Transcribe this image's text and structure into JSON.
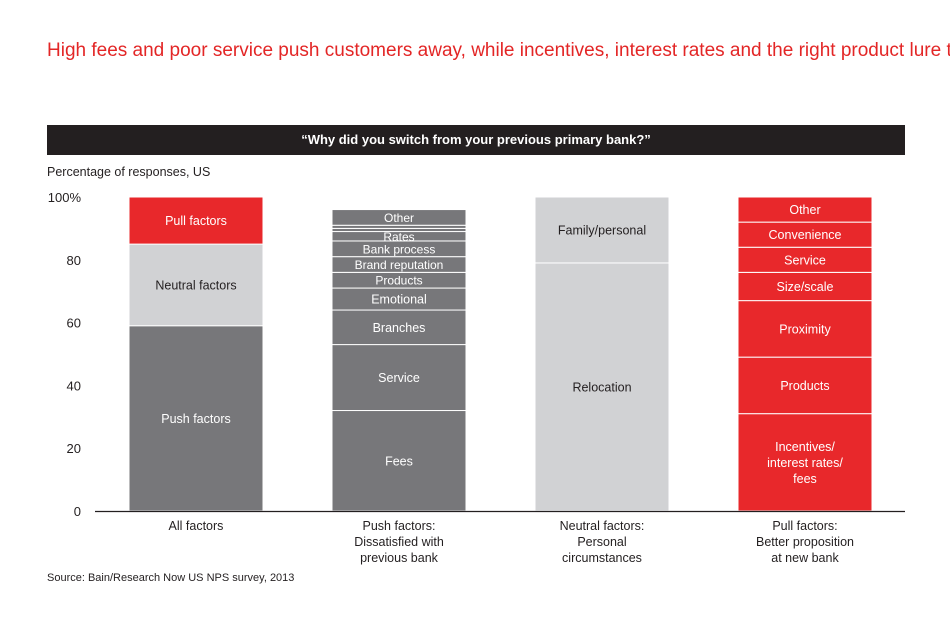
{
  "title": "High fees and poor service push customers away, while incentives, interest rates and the right product lure them",
  "banner": "“Why did you switch from your previous primary bank?”",
  "ylabel": "Percentage of responses, US",
  "source": "Source: Bain/Research Now US NPS survey, 2013",
  "colors": {
    "push": "#77777a",
    "neutral": "#d1d2d4",
    "pull": "#e8282b",
    "axis": "#231f20"
  },
  "chart_data": {
    "type": "bar",
    "stacked": true,
    "ylim": [
      0,
      100
    ],
    "yticks": [
      0,
      20,
      40,
      60,
      80,
      100
    ],
    "ytick_labels": [
      "0",
      "20",
      "40",
      "60",
      "80",
      "100%"
    ],
    "categories": [
      [
        "All factors"
      ],
      [
        "Push factors:",
        "Dissatisfied with",
        "previous bank"
      ],
      [
        "Neutral factors:",
        "Personal",
        "circumstances"
      ],
      [
        "Pull factors:",
        "Better proposition",
        "at new bank"
      ]
    ],
    "bars": [
      {
        "segments": [
          {
            "label": [
              "Push factors"
            ],
            "value": 59,
            "color": "push"
          },
          {
            "label": [
              "Neutral factors"
            ],
            "value": 26,
            "color": "neutral"
          },
          {
            "label": [
              "Pull factors"
            ],
            "value": 15,
            "color": "pull"
          }
        ]
      },
      {
        "segments": [
          {
            "label": [
              "Fees"
            ],
            "value": 32,
            "color": "push"
          },
          {
            "label": [
              "Service"
            ],
            "value": 21,
            "color": "push"
          },
          {
            "label": [
              "Branches"
            ],
            "value": 11,
            "color": "push"
          },
          {
            "label": [
              "Emotional"
            ],
            "value": 7,
            "color": "push"
          },
          {
            "label": [
              "Products"
            ],
            "value": 5,
            "color": "push"
          },
          {
            "label": [
              "Brand reputation"
            ],
            "value": 5,
            "color": "push"
          },
          {
            "label": [
              "Bank process"
            ],
            "value": 5,
            "color": "push"
          },
          {
            "label": [
              "Rates"
            ],
            "value": 3,
            "color": "push"
          },
          {
            "label": [],
            "value": 1,
            "color": "push"
          },
          {
            "label": [],
            "value": 1,
            "color": "push"
          },
          {
            "label": [
              "Other"
            ],
            "value": 5,
            "color": "push"
          }
        ]
      },
      {
        "segments": [
          {
            "label": [
              "Relocation"
            ],
            "value": 79,
            "color": "neutral"
          },
          {
            "label": [
              "Family/personal"
            ],
            "value": 21,
            "color": "neutral"
          }
        ]
      },
      {
        "segments": [
          {
            "label": [
              "Incentives/",
              "interest rates/",
              "fees"
            ],
            "value": 31,
            "color": "pull"
          },
          {
            "label": [
              "Products"
            ],
            "value": 18,
            "color": "pull"
          },
          {
            "label": [
              "Proximity"
            ],
            "value": 18,
            "color": "pull"
          },
          {
            "label": [
              "Size/scale"
            ],
            "value": 9,
            "color": "pull"
          },
          {
            "label": [
              "Service"
            ],
            "value": 8,
            "color": "pull"
          },
          {
            "label": [
              "Convenience"
            ],
            "value": 8,
            "color": "pull"
          },
          {
            "label": [
              "Other"
            ],
            "value": 8,
            "color": "pull"
          }
        ]
      }
    ]
  }
}
